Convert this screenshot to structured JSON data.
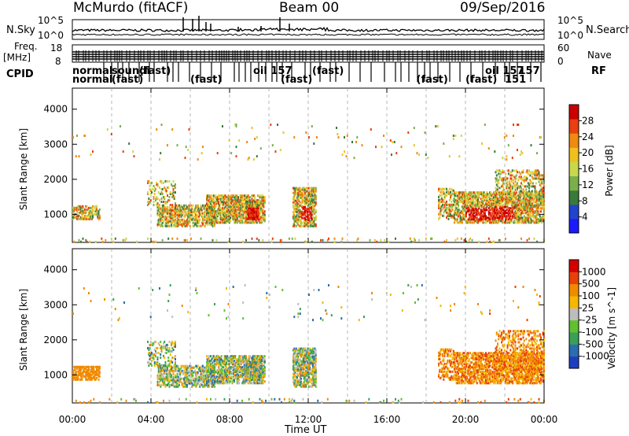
{
  "header": {
    "station": "McMurdo (fitACF)",
    "beam": "Beam 00",
    "date": "09/Sep/2016"
  },
  "top_panel": {
    "left_label": "N.Sky",
    "right_label": "N.Search",
    "left_ticks": [
      "10^5",
      "10^0"
    ],
    "right_ticks": [
      "10^5",
      "10^0"
    ]
  },
  "freq_panel": {
    "left_label": "Freq.",
    "left_unit": "[MHz]",
    "left_ticks": [
      "18",
      "8"
    ],
    "right_label": "Nave",
    "right_ticks": [
      "60",
      "0"
    ]
  },
  "cpid": {
    "label": "CPID",
    "row1": [
      {
        "text": "normal",
        "x_hour": 0.0
      },
      {
        "text": "soundi",
        "x_hour": 2.0
      },
      {
        "text": "(fast)",
        "x_hour": 3.4
      },
      {
        "text": "oil 157",
        "x_hour": 9.2
      },
      {
        "text": "(fast)",
        "x_hour": 12.2
      },
      {
        "text": "oil 157",
        "x_hour": 21.0
      },
      {
        "text": "157",
        "x_hour": 22.7
      }
    ],
    "row2": [
      {
        "text": "normal",
        "x_hour": 0.0
      },
      {
        "text": "(fast)",
        "x_hour": 2.0
      },
      {
        "text": "(fast)",
        "x_hour": 6.0
      },
      {
        "text": "(fast)",
        "x_hour": 10.6
      },
      {
        "text": "(fast)",
        "x_hour": 17.5
      },
      {
        "text": "(fast)",
        "x_hour": 20.0
      },
      {
        "text": "151",
        "x_hour": 22.0
      }
    ],
    "rf_label": "RF"
  },
  "chart_data": [
    {
      "type": "heatmap",
      "name": "power",
      "ylabel": "Slant Range [km]",
      "xlim": [
        0,
        24
      ],
      "ylim": [
        200,
        4600
      ],
      "y_ticks": [
        1000,
        2000,
        3000,
        4000
      ],
      "colorbar_label": "Power [dB]",
      "colorbar_ticks": [
        "28",
        "24",
        "20",
        "16",
        "12",
        "8",
        "4"
      ],
      "colorbar_colors": [
        "#1a1aff",
        "#2244cc",
        "#3a7a3a",
        "#7ab04a",
        "#c8d84a",
        "#f0c020",
        "#f08a10",
        "#e84010",
        "#cc0000"
      ]
    },
    {
      "type": "heatmap",
      "name": "velocity",
      "ylabel": "Slant Range [km]",
      "xlabel": "Time UT",
      "xlim": [
        0,
        24
      ],
      "ylim": [
        200,
        4600
      ],
      "x_ticks": [
        "00:00",
        "04:00",
        "08:00",
        "12:00",
        "16:00",
        "20:00",
        "00:00"
      ],
      "y_ticks": [
        1000,
        2000,
        3000,
        4000
      ],
      "colorbar_label": "Velocity [m s^-1]",
      "colorbar_ticks": [
        "1000",
        "500",
        "100",
        "25",
        "-25",
        "-100",
        "-500",
        "-1000"
      ],
      "colorbar_colors": [
        "#1d3fbf",
        "#2a6db0",
        "#3aa058",
        "#60c030",
        "#bdbdbd",
        "#f5b700",
        "#f08a00",
        "#e8400a",
        "#d40000"
      ]
    }
  ]
}
